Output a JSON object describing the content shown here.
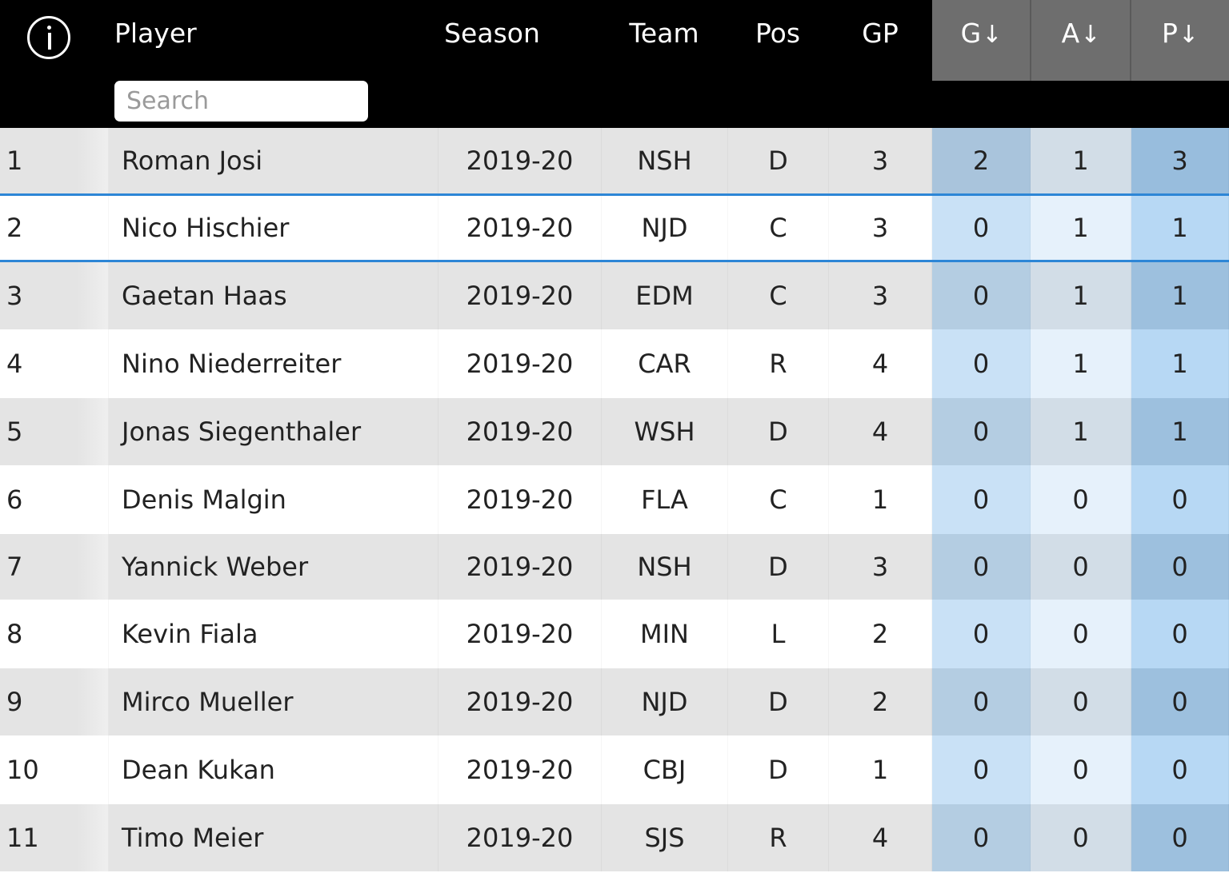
{
  "header": {
    "info_icon": "info-icon",
    "columns": {
      "player": "Player",
      "season": "Season",
      "team": "Team",
      "pos": "Pos",
      "gp": "GP",
      "g": "G",
      "a": "A",
      "p": "P"
    },
    "sort_arrow": "↓",
    "search_placeholder": "Search"
  },
  "colors": {
    "header_bg": "#000000",
    "sorted_header_bg": "#6e6e6e",
    "selected_row_border": "#2d86d6",
    "row_odd": "#e4e4e4",
    "row_even": "#ffffff",
    "g_odd": "#b4cde2",
    "g_even": "#c9e1f6",
    "a_odd": "#d2dde7",
    "a_even": "#e6f1fb",
    "p_odd": "#9dc0de",
    "p_even": "#b7d8f4",
    "g_highlight": "#a9c4dc",
    "p_highlight": "#98bddd"
  },
  "rows": [
    {
      "rank": "1",
      "player": "Roman Josi",
      "season": "2019-20",
      "team": "NSH",
      "pos": "D",
      "gp": "3",
      "g": "2",
      "a": "1",
      "p": "3"
    },
    {
      "rank": "2",
      "player": "Nico Hischier",
      "season": "2019-20",
      "team": "NJD",
      "pos": "C",
      "gp": "3",
      "g": "0",
      "a": "1",
      "p": "1",
      "selected": true
    },
    {
      "rank": "3",
      "player": "Gaetan Haas",
      "season": "2019-20",
      "team": "EDM",
      "pos": "C",
      "gp": "3",
      "g": "0",
      "a": "1",
      "p": "1"
    },
    {
      "rank": "4",
      "player": "Nino Niederreiter",
      "season": "2019-20",
      "team": "CAR",
      "pos": "R",
      "gp": "4",
      "g": "0",
      "a": "1",
      "p": "1"
    },
    {
      "rank": "5",
      "player": "Jonas Siegenthaler",
      "season": "2019-20",
      "team": "WSH",
      "pos": "D",
      "gp": "4",
      "g": "0",
      "a": "1",
      "p": "1"
    },
    {
      "rank": "6",
      "player": "Denis Malgin",
      "season": "2019-20",
      "team": "FLA",
      "pos": "C",
      "gp": "1",
      "g": "0",
      "a": "0",
      "p": "0"
    },
    {
      "rank": "7",
      "player": "Yannick Weber",
      "season": "2019-20",
      "team": "NSH",
      "pos": "D",
      "gp": "3",
      "g": "0",
      "a": "0",
      "p": "0"
    },
    {
      "rank": "8",
      "player": "Kevin Fiala",
      "season": "2019-20",
      "team": "MIN",
      "pos": "L",
      "gp": "2",
      "g": "0",
      "a": "0",
      "p": "0"
    },
    {
      "rank": "9",
      "player": "Mirco Mueller",
      "season": "2019-20",
      "team": "NJD",
      "pos": "D",
      "gp": "2",
      "g": "0",
      "a": "0",
      "p": "0"
    },
    {
      "rank": "10",
      "player": "Dean Kukan",
      "season": "2019-20",
      "team": "CBJ",
      "pos": "D",
      "gp": "1",
      "g": "0",
      "a": "0",
      "p": "0"
    },
    {
      "rank": "11",
      "player": "Timo Meier",
      "season": "2019-20",
      "team": "SJS",
      "pos": "R",
      "gp": "4",
      "g": "0",
      "a": "0",
      "p": "0"
    }
  ]
}
